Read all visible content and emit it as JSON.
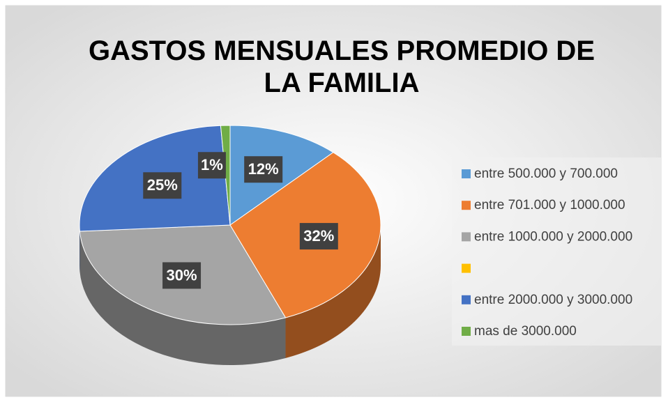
{
  "chart_data": {
    "type": "pie3d",
    "title": "GASTOS MENSUALES PROMEDIO DE LA FAMILIA",
    "categories": [
      "entre 500.000 y 700.000",
      "entre 701.000 y 1000.000",
      "entre 1000.000 y 2000.000",
      null,
      "entre 2000.000 y 3000.000",
      "mas de 3000.000"
    ],
    "values": [
      12,
      32,
      30,
      0,
      25,
      1
    ],
    "value_labels": [
      "12%",
      "32%",
      "30%",
      null,
      "25%",
      "1%"
    ],
    "colors": [
      "#5b9bd5",
      "#ed7d31",
      "#a5a5a5",
      "#ffc000",
      "#4472c4",
      "#70ad47"
    ],
    "legend": "right"
  }
}
